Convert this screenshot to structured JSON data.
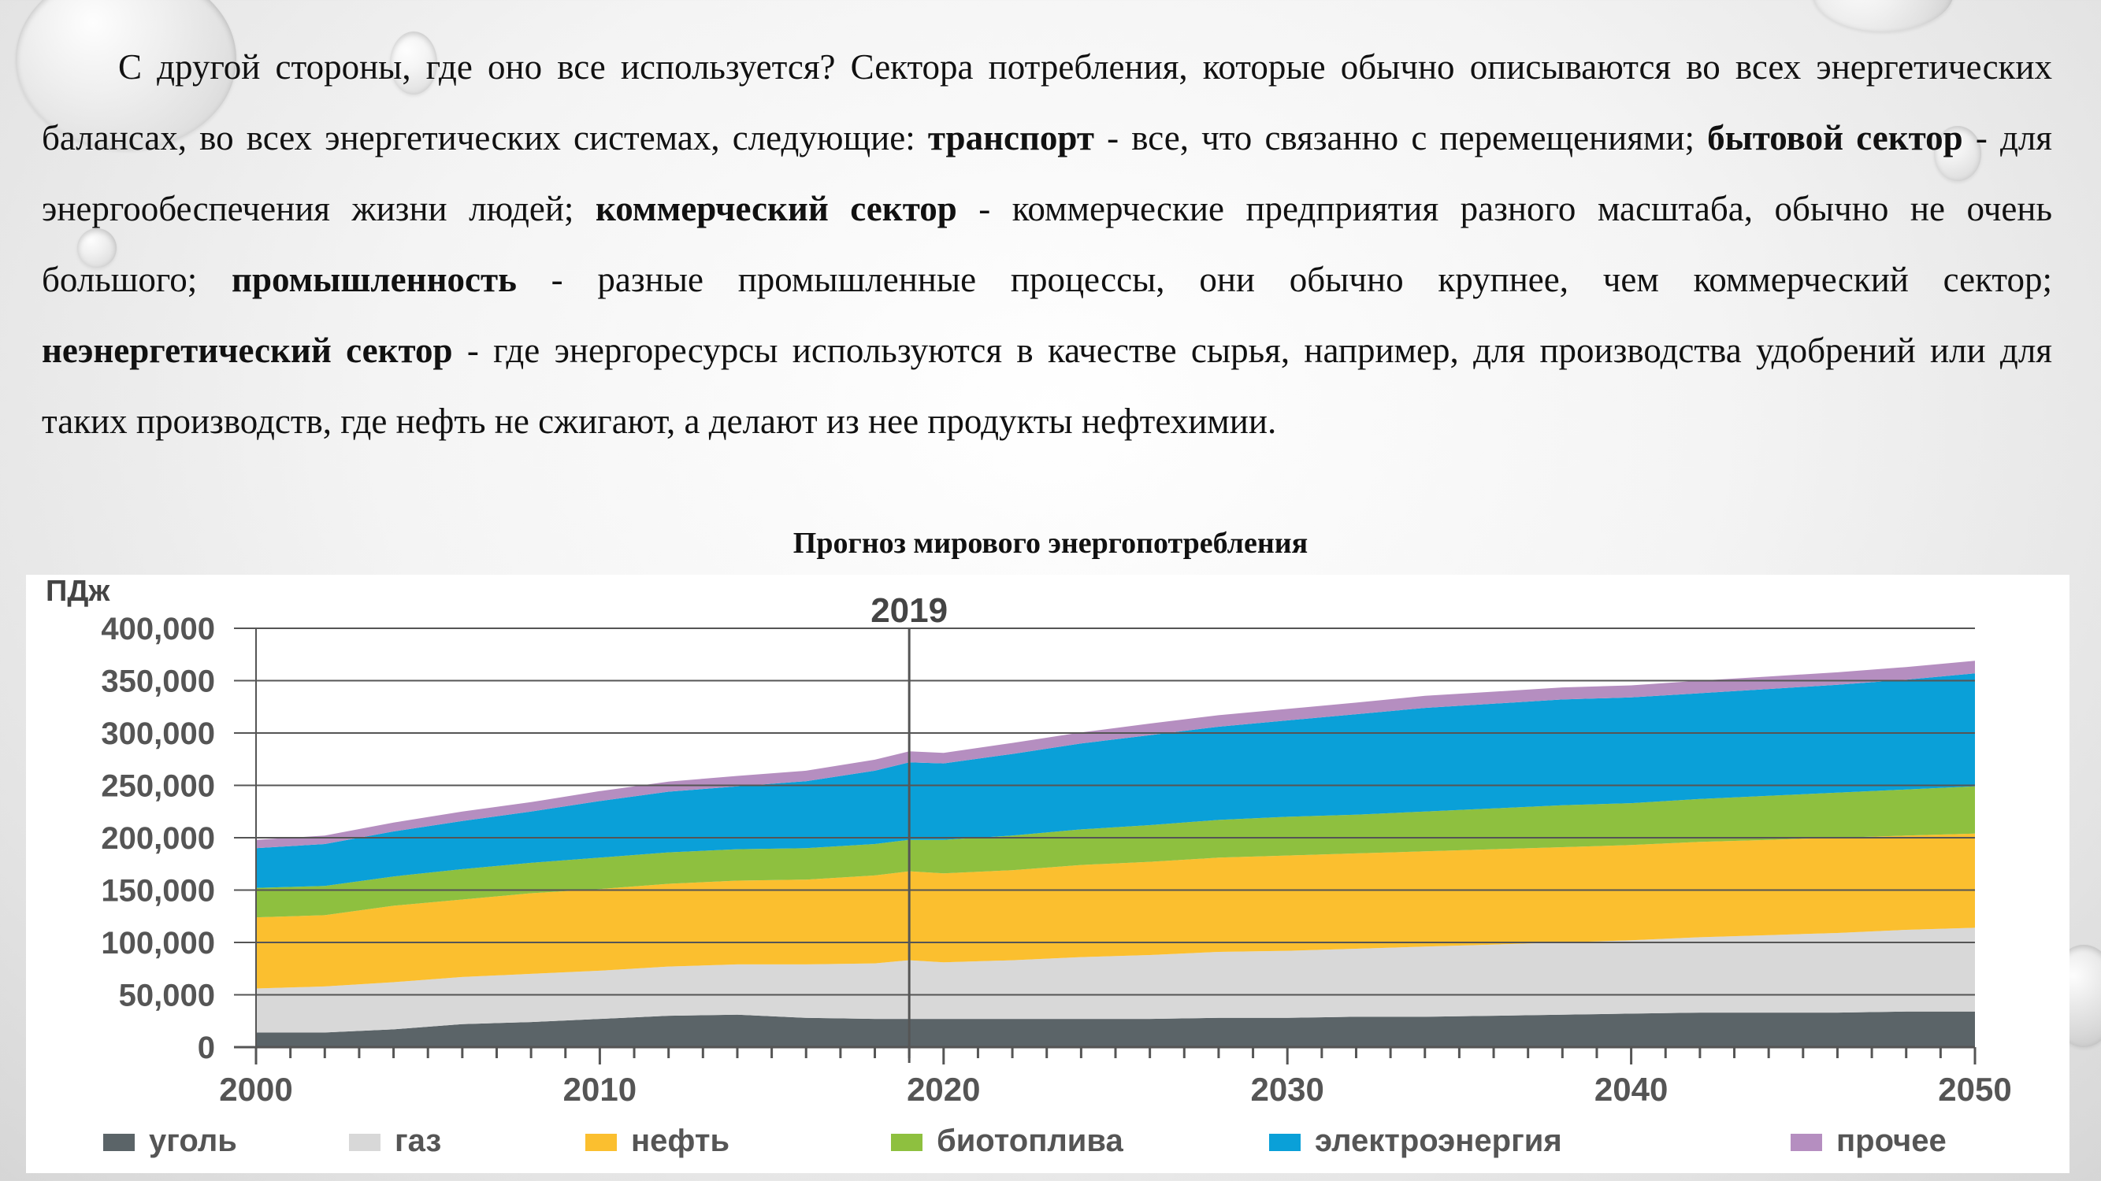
{
  "paragraph": {
    "p1": "С другой стороны, где оно все используется? Сектора потребления, которые обычно описываются во всех энергетических балансах, во всех энергетических системах, следующие: ",
    "b1": "транспорт",
    "p2": " - все, что связанно с перемещениями; ",
    "b2": "бытовой сектор",
    "p3": " - для энергообеспечения жизни людей; ",
    "b3": "коммерческий сектор",
    "p4": " - коммерческие предприятия разного масштаба, обычно не очень большого; ",
    "b4": "промышленность",
    "p5": " - разные промышленные процессы, они обычно крупнее, чем коммерческий сектор; ",
    "b5": "неэнергетический сектор",
    "p6": " - где энергоресурсы используются в качестве сырья, например, для производства удобрений или для таких производств, где нефть не сжигают, а делают из нее продукты нефтехимии."
  },
  "chart_title": "Прогноз мирового энергопотребления",
  "chart_data": {
    "type": "area",
    "stacked": true,
    "title": "Прогноз мирового энергопотребления",
    "ylabel": "ПДж",
    "ylim": [
      0,
      400000
    ],
    "xlim": [
      2000,
      2050
    ],
    "y_ticks": [
      "0",
      "50,000",
      "100,000",
      "150,000",
      "200,000",
      "250,000",
      "300,000",
      "350,000",
      "400,000"
    ],
    "x_ticks": [
      "2000",
      "2010",
      "2020",
      "2030",
      "2040",
      "2050"
    ],
    "marker_year": 2019,
    "marker_label": "2019",
    "grid": true,
    "legend_position": "bottom",
    "x": [
      2000,
      2002,
      2004,
      2006,
      2008,
      2010,
      2012,
      2014,
      2016,
      2018,
      2019,
      2020,
      2022,
      2024,
      2026,
      2028,
      2030,
      2032,
      2034,
      2036,
      2038,
      2040,
      2042,
      2044,
      2046,
      2048,
      2050
    ],
    "series": [
      {
        "name": "уголь",
        "color": "#5b6468",
        "values": [
          14000,
          14000,
          17000,
          22000,
          24000,
          27000,
          30000,
          31000,
          28000,
          27000,
          27000,
          27000,
          27000,
          27000,
          27000,
          28000,
          28000,
          29000,
          29000,
          30000,
          31000,
          32000,
          33000,
          33000,
          33000,
          34000,
          34000
        ]
      },
      {
        "name": "газ",
        "color": "#d8d8d8",
        "values": [
          42000,
          44000,
          45000,
          45000,
          46000,
          46000,
          47000,
          48000,
          51000,
          53000,
          56000,
          54000,
          56000,
          59000,
          61000,
          63000,
          64000,
          65000,
          67000,
          68000,
          69000,
          70000,
          72000,
          74000,
          76000,
          78000,
          80000
        ]
      },
      {
        "name": "нефть",
        "color": "#fbbf2f",
        "values": [
          68000,
          68000,
          73000,
          74000,
          77000,
          78000,
          79000,
          80000,
          81000,
          84000,
          85000,
          85000,
          86000,
          88000,
          89000,
          90000,
          91000,
          91000,
          91000,
          91000,
          91000,
          91000,
          91000,
          91000,
          91000,
          90000,
          90000
        ]
      },
      {
        "name": "биотоплива",
        "color": "#8ec03f",
        "values": [
          28000,
          28000,
          28000,
          29000,
          29000,
          30000,
          30000,
          30000,
          30000,
          30000,
          30000,
          32000,
          33000,
          34000,
          35000,
          36000,
          37000,
          37000,
          38000,
          39000,
          40000,
          40000,
          41000,
          42000,
          43000,
          44000,
          45000
        ]
      },
      {
        "name": "электроэнергия",
        "color": "#0aa0d8",
        "values": [
          38000,
          40000,
          43000,
          46000,
          49000,
          54000,
          58000,
          60000,
          64000,
          70000,
          74000,
          73000,
          78000,
          82000,
          86000,
          89000,
          92000,
          96000,
          99000,
          100000,
          101000,
          101000,
          101000,
          102000,
          103000,
          105000,
          108000
        ]
      },
      {
        "name": "прочее",
        "color": "#b58ec0",
        "values": [
          8000,
          8000,
          8500,
          9000,
          9000,
          9500,
          9500,
          10000,
          10000,
          10500,
          10500,
          10000,
          10500,
          10500,
          11000,
          11000,
          11000,
          11000,
          11500,
          11500,
          11500,
          11500,
          12000,
          12000,
          12000,
          12000,
          12000
        ]
      }
    ]
  }
}
